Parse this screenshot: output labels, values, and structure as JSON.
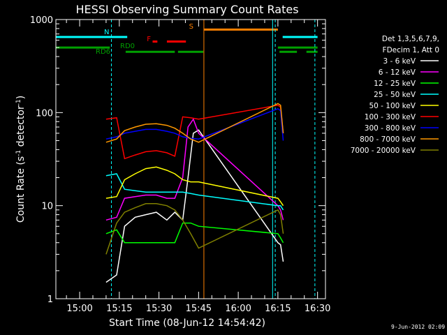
{
  "title": "HESSI Observing Summary Count Rates",
  "xlabel": "Start Time (08-Jun-12 14:54:42)",
  "ylabel_main": "Count Rate (s",
  "ylabel_sup1": "-1",
  "ylabel_mid": " detector",
  "ylabel_sup2": "-1",
  "ylabel_end": ")",
  "timestamp": "9-Jun-2012 02:09",
  "legend_header": [
    "Det 1,3,5,6,7,9,",
    "FDecim 1, Att 0"
  ],
  "flags": {
    "N": {
      "label": "N",
      "color": "#00ffff",
      "segments": [
        [
          14.85,
          15.3
        ],
        [
          16.28,
          16.5
        ]
      ],
      "level": 650
    },
    "F": {
      "label": "F",
      "color": "#ff0000",
      "segments": [
        [
          15.46,
          15.49
        ],
        [
          15.55,
          15.67
        ]
      ],
      "level": 580
    },
    "S": {
      "label": "S",
      "color": "#ff8000",
      "segments": [
        [
          15.785,
          16.25
        ]
      ],
      "level": 780
    },
    "RD0": {
      "label": "RD0",
      "color": "#00a000",
      "segments": [
        [
          14.85,
          15.19
        ],
        [
          16.25,
          16.5
        ]
      ],
      "level": 500
    },
    "RD6": {
      "label": "RD6",
      "color": "#00a000",
      "segments": [
        [
          15.29,
          15.6
        ],
        [
          15.62,
          15.78
        ],
        [
          16.26,
          16.37
        ],
        [
          16.43,
          16.5
        ]
      ],
      "level": 450
    }
  },
  "chart_data": {
    "type": "line",
    "title": "HESSI Observing Summary Count Rates",
    "xlabel": "Start Time (08-Jun-12 14:54:42)",
    "ylabel": "Count Rate (s-1 detector-1)",
    "xlim": [
      "14:51",
      "16:33"
    ],
    "ylim": [
      1,
      1000
    ],
    "yscale": "log",
    "xticks": [
      "15:00",
      "15:15",
      "15:30",
      "15:45",
      "16:00",
      "16:15",
      "16:30"
    ],
    "yticks": [
      "1",
      "10",
      "100",
      "1000"
    ],
    "vlines": [
      {
        "x": "14:51",
        "color": "#00ffff",
        "style": "solid"
      },
      {
        "x": "15:12",
        "color": "#00ffff",
        "style": "dashed"
      },
      {
        "x": "15:47",
        "color": "#ff8000",
        "style": "solid"
      },
      {
        "x": "16:13",
        "color": "#00ffff",
        "style": "solid"
      },
      {
        "x": "16:14",
        "color": "#00ffff",
        "style": "dashed"
      },
      {
        "x": "16:29",
        "color": "#00ffff",
        "style": "dashed"
      }
    ],
    "series": [
      {
        "name": "3 - 6 keV",
        "color": "#ffffff",
        "times": [
          "15:10",
          "15:14",
          "15:17",
          "15:21",
          "15:25",
          "15:29",
          "15:33",
          "15:36",
          "15:39",
          "15:41",
          "15:43",
          "15:45",
          "16:15",
          "16:16",
          "16:17"
        ],
        "values": [
          1.5,
          1.8,
          6.0,
          7.5,
          8.0,
          8.5,
          7.0,
          8.5,
          7.0,
          20.0,
          60.0,
          65.0,
          4.0,
          3.8,
          2.5
        ]
      },
      {
        "name": "6 - 12 keV",
        "color": "#ff00ff",
        "times": [
          "15:10",
          "15:14",
          "15:17",
          "15:21",
          "15:25",
          "15:29",
          "15:33",
          "15:36",
          "15:39",
          "15:41",
          "15:43",
          "15:45",
          "16:15",
          "16:16",
          "16:17"
        ],
        "values": [
          7.0,
          7.5,
          12.0,
          12.5,
          13.0,
          13.0,
          12.0,
          12.0,
          20.0,
          70.0,
          85.0,
          60.0,
          10.0,
          9.0,
          7.0
        ]
      },
      {
        "name": "12 - 25 keV",
        "color": "#00ff00",
        "times": [
          "15:10",
          "15:14",
          "15:17",
          "15:21",
          "15:25",
          "15:29",
          "15:33",
          "15:36",
          "15:39",
          "15:42",
          "15:45",
          "16:15",
          "16:16",
          "16:17"
        ],
        "values": [
          5.0,
          5.5,
          4.0,
          4.0,
          4.0,
          4.0,
          4.0,
          4.0,
          6.5,
          6.5,
          6.0,
          5.0,
          4.5,
          4.0
        ]
      },
      {
        "name": "25 - 50 keV",
        "color": "#00ffff",
        "times": [
          "15:10",
          "15:14",
          "15:17",
          "15:21",
          "15:25",
          "15:29",
          "15:33",
          "15:36",
          "15:39",
          "15:42",
          "15:45",
          "16:15",
          "16:16",
          "16:17"
        ],
        "values": [
          21.0,
          22.0,
          15.0,
          14.5,
          14.0,
          14.0,
          14.0,
          14.0,
          14.0,
          13.5,
          13.0,
          10.0,
          10.0,
          9.0
        ]
      },
      {
        "name": "50 - 100 keV",
        "color": "#ffff00",
        "times": [
          "15:10",
          "15:14",
          "15:17",
          "15:21",
          "15:25",
          "15:29",
          "15:33",
          "15:36",
          "15:39",
          "15:42",
          "15:45",
          "16:15",
          "16:16",
          "16:17"
        ],
        "values": [
          12.0,
          12.5,
          19.0,
          22.0,
          25.0,
          26.0,
          24.0,
          22.0,
          19.0,
          18.0,
          18.0,
          12.0,
          11.0,
          10.0
        ]
      },
      {
        "name": "100 - 300 keV",
        "color": "#ff0000",
        "times": [
          "15:10",
          "15:14",
          "15:17",
          "15:21",
          "15:25",
          "15:29",
          "15:33",
          "15:36",
          "15:39",
          "15:42",
          "15:45",
          "16:15",
          "16:16",
          "16:17"
        ],
        "values": [
          85.0,
          88.0,
          32.0,
          35.0,
          38.0,
          39.0,
          37.0,
          34.0,
          90.0,
          88.0,
          85.0,
          120.0,
          115.0,
          60.0
        ]
      },
      {
        "name": "300 - 800 keV",
        "color": "#0000ff",
        "times": [
          "15:10",
          "15:14",
          "15:17",
          "15:21",
          "15:25",
          "15:29",
          "15:33",
          "15:36",
          "15:39",
          "15:42",
          "15:45",
          "16:15",
          "16:16",
          "16:17"
        ],
        "values": [
          52.0,
          55.0,
          60.0,
          63.0,
          66.0,
          66.0,
          63.0,
          60.0,
          55.0,
          53.0,
          52.0,
          110.0,
          105.0,
          50.0
        ]
      },
      {
        "name": "800 - 7000 keV",
        "color": "#ff9900",
        "times": [
          "15:10",
          "15:14",
          "15:17",
          "15:21",
          "15:25",
          "15:29",
          "15:33",
          "15:36",
          "15:39",
          "15:42",
          "15:45",
          "16:15",
          "16:16",
          "16:17"
        ],
        "values": [
          48.0,
          52.0,
          64.0,
          70.0,
          75.0,
          76.0,
          73.0,
          68.0,
          60.0,
          52.0,
          48.0,
          125.0,
          120.0,
          60.0
        ]
      },
      {
        "name": "7000 - 20000 keV",
        "color": "#808000",
        "times": [
          "15:10",
          "15:14",
          "15:17",
          "15:21",
          "15:25",
          "15:29",
          "15:33",
          "15:36",
          "15:39",
          "15:42",
          "15:45",
          "16:15",
          "16:16",
          "16:17"
        ],
        "values": [
          3.0,
          6.5,
          8.5,
          9.5,
          10.5,
          10.5,
          10.0,
          9.0,
          7.0,
          5.0,
          3.5,
          9.0,
          8.0,
          5.0
        ]
      }
    ]
  }
}
